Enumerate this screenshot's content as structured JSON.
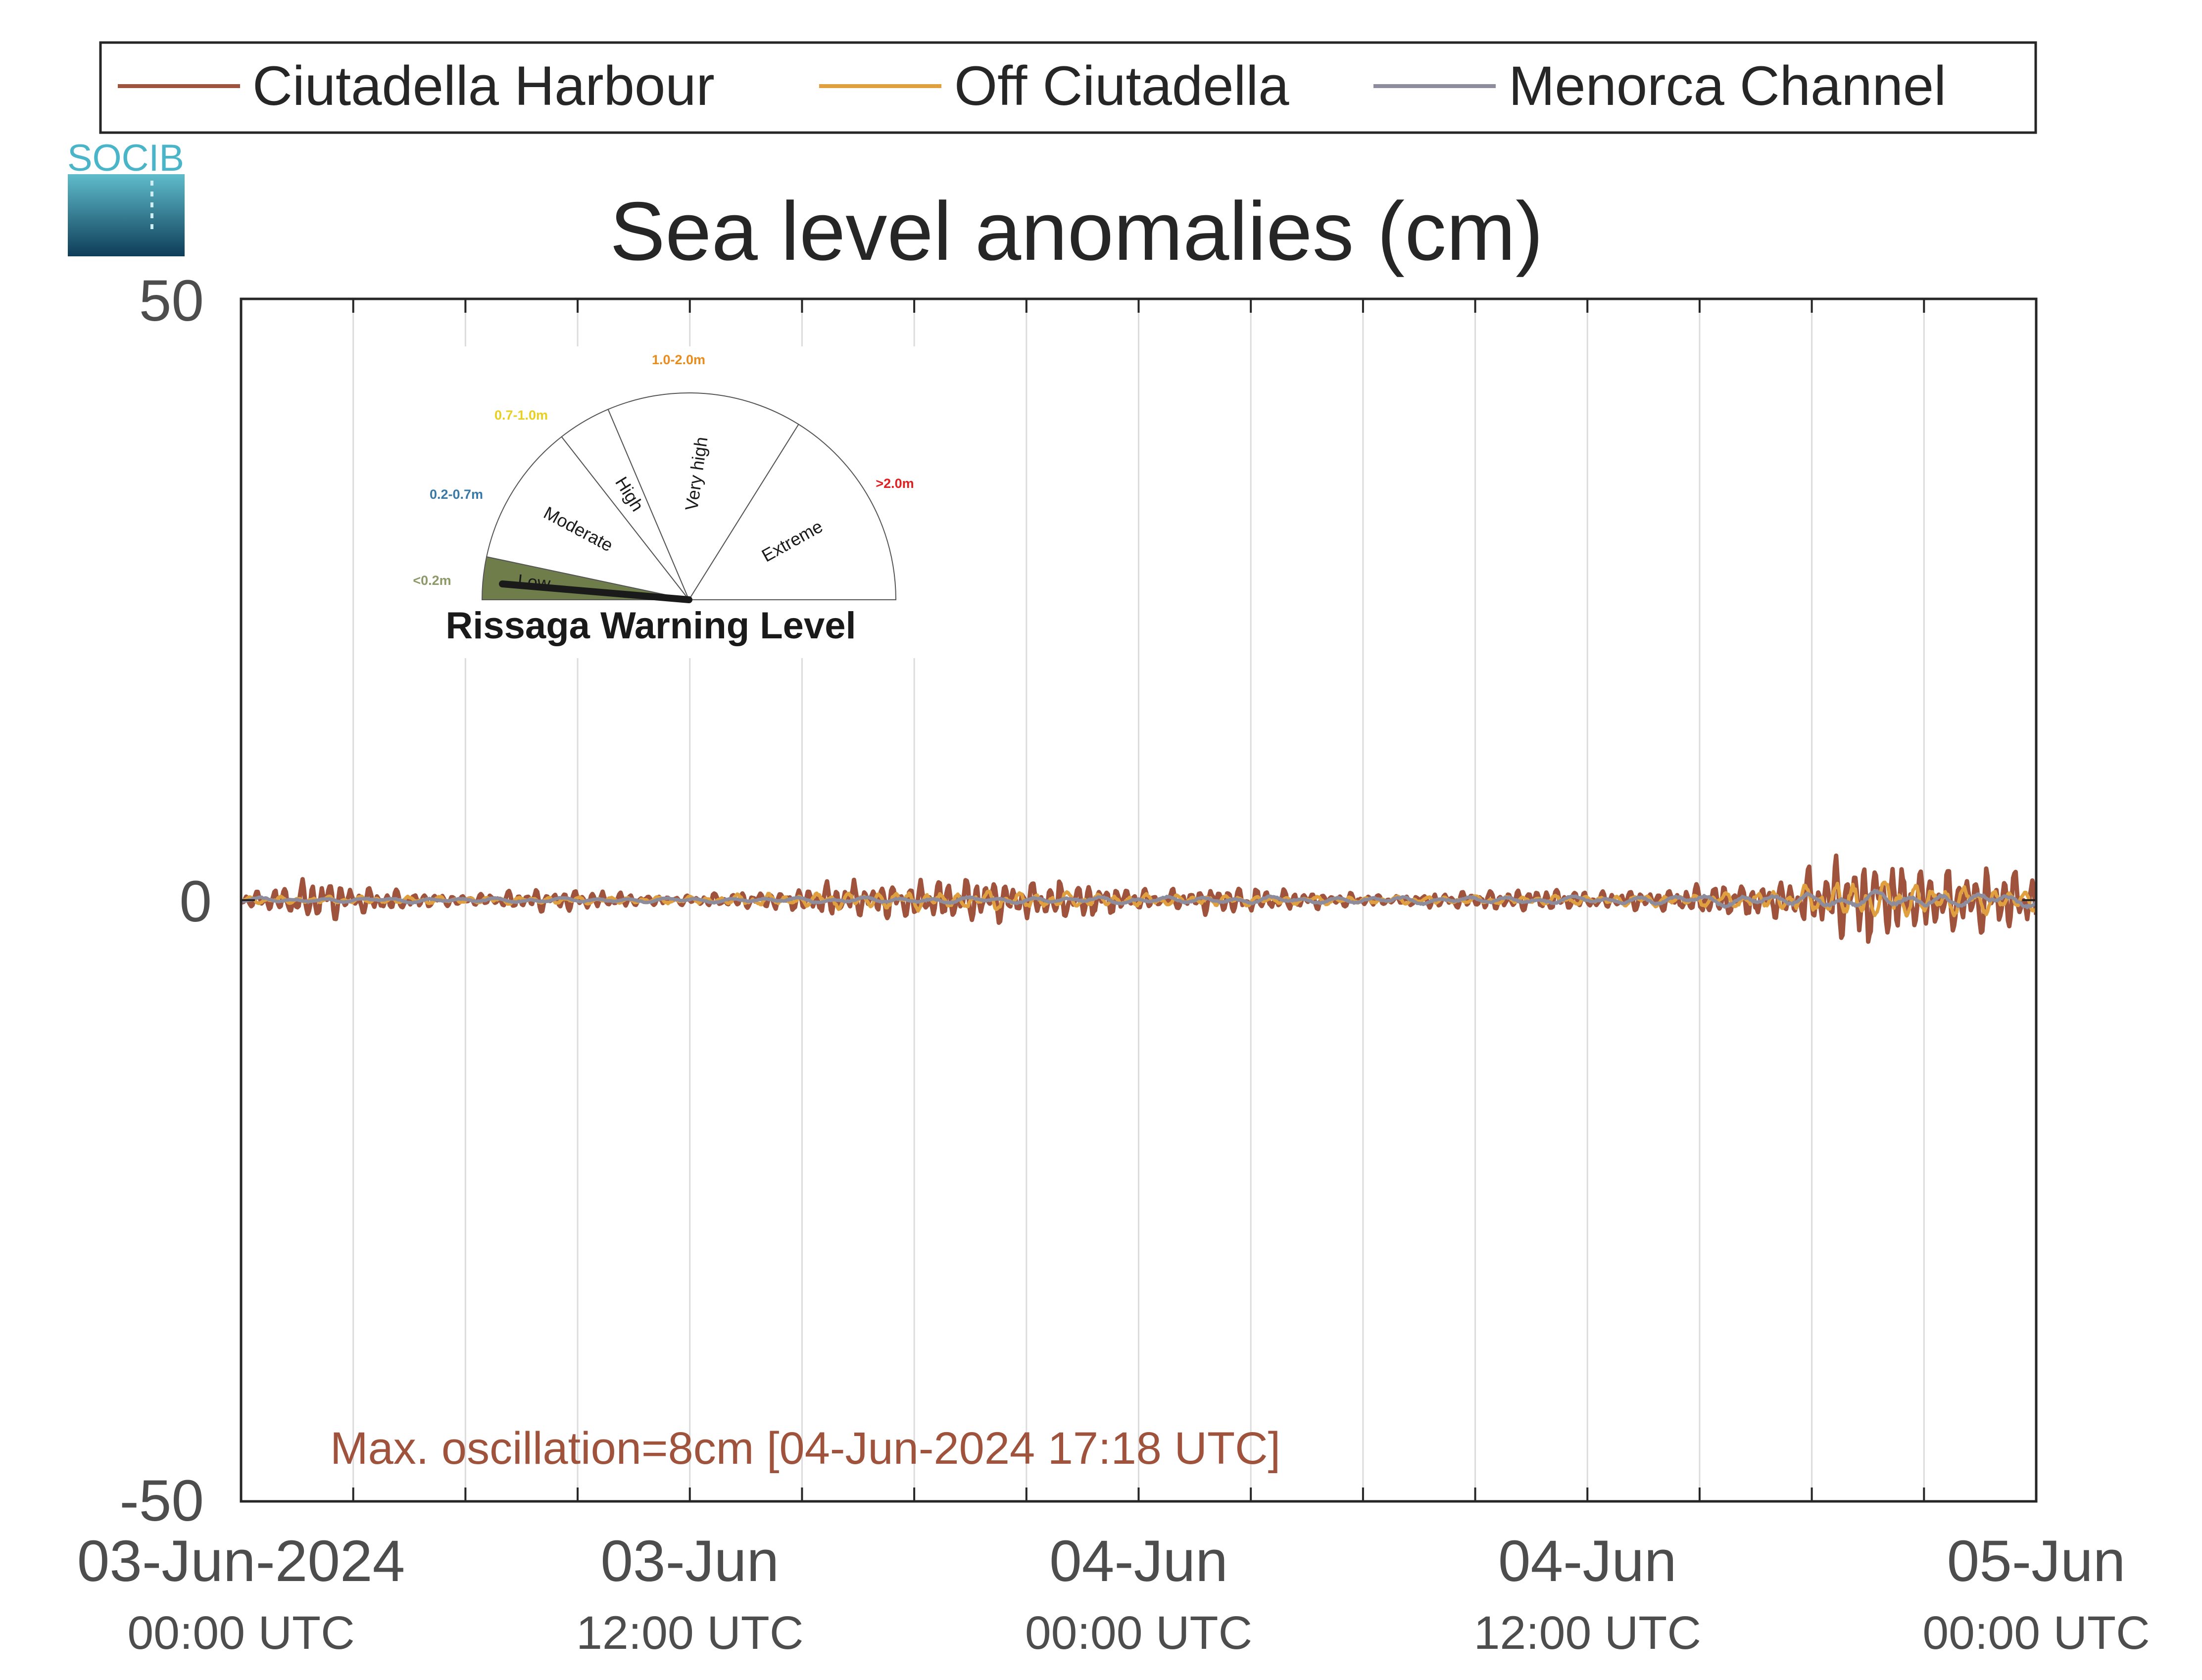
{
  "logo": {
    "text": "SOCIB"
  },
  "chart_data": {
    "type": "line",
    "title": "Sea level anomalies (cm)",
    "xlabel": "",
    "ylabel": "",
    "ylim": [
      -50,
      50
    ],
    "y_ticks": [
      "50",
      "0",
      "-50"
    ],
    "x_range": [
      "2024-06-03T00:00Z",
      "2024-06-05T00:00Z"
    ],
    "x_ticks": [
      {
        "date": "03-Jun-2024",
        "time": "00:00 UTC"
      },
      {
        "date": "03-Jun",
        "time": "12:00 UTC"
      },
      {
        "date": "04-Jun",
        "time": "00:00 UTC"
      },
      {
        "date": "04-Jun",
        "time": "12:00 UTC"
      },
      {
        "date": "05-Jun",
        "time": "00:00 UTC"
      }
    ],
    "grid": true,
    "legend_position": "top",
    "series": [
      {
        "name": "Ciutadella Harbour",
        "color": "#a0533c",
        "amplitude_profile": {
          "hours": [
            0,
            1,
            2,
            3,
            4,
            5,
            6,
            7,
            8,
            9,
            10,
            11,
            12,
            13,
            14,
            15,
            16,
            17,
            18,
            19,
            20,
            21,
            22,
            23,
            24,
            25,
            26,
            27,
            28,
            29,
            30,
            31,
            32,
            33,
            34,
            35,
            36,
            37,
            38,
            39,
            40,
            41,
            42,
            43,
            44,
            45,
            46,
            47,
            48
          ],
          "amplitude_cm": [
            0.4,
            1.1,
            1.9,
            1.2,
            0.9,
            0.6,
            0.4,
            0.6,
            0.9,
            0.8,
            0.6,
            0.4,
            0.4,
            0.6,
            0.7,
            0.9,
            1.6,
            1.4,
            1.6,
            1.8,
            1.8,
            1.5,
            1.8,
            1.3,
            0.9,
            0.9,
            1.1,
            1.2,
            0.8,
            0.6,
            0.5,
            0.4,
            0.6,
            0.8,
            0.8,
            0.9,
            0.7,
            0.8,
            0.8,
            1.3,
            1.5,
            1.3,
            2.6,
            3.8,
            3.5,
            2.5,
            2.8,
            2.9,
            2.2
          ],
          "max_oscillation_cm": 8,
          "max_time": "2024-06-04T17:18Z"
        }
      },
      {
        "name": "Off Ciutadella",
        "color": "#e0a040",
        "amplitude_profile": {
          "hours": [
            0,
            6,
            12,
            16,
            20,
            24,
            30,
            36,
            40,
            42,
            43,
            44,
            46,
            48
          ],
          "amplitude_cm": [
            0.3,
            0.3,
            0.3,
            0.7,
            0.8,
            0.5,
            0.3,
            0.4,
            0.6,
            1.1,
            1.8,
            1.6,
            1.2,
            0.9
          ]
        }
      },
      {
        "name": "Menorca Channel",
        "color": "#8c8c9c",
        "amplitude_profile": {
          "hours": [
            0,
            12,
            24,
            36,
            42,
            44,
            48
          ],
          "amplitude_cm": [
            0.2,
            0.2,
            0.3,
            0.3,
            0.6,
            0.7,
            0.5
          ]
        }
      }
    ],
    "annotation": "Max. oscillation=8cm [04-Jun-2024 17:18 UTC]",
    "annotation_color": "#a0533c"
  },
  "gauge": {
    "title": "Rissaga Warning Level",
    "current_level": "Low",
    "sectors": [
      {
        "name": "Low",
        "range": "<0.2m",
        "range_color": "#8c9a6a",
        "fill": "#6f7d4b"
      },
      {
        "name": "Moderate",
        "range": "0.2-0.7m",
        "range_color": "#3a79a6",
        "fill": "#ffffff"
      },
      {
        "name": "High",
        "range": "0.7-1.0m",
        "range_color": "#e8d020",
        "fill": "#ffffff"
      },
      {
        "name": "Very high",
        "range": "1.0-2.0m",
        "range_color": "#ea8c1c",
        "fill": "#ffffff"
      },
      {
        "name": "Extreme",
        "range": ">2.0m",
        "range_color": "#e02020",
        "fill": "#ffffff"
      }
    ]
  }
}
